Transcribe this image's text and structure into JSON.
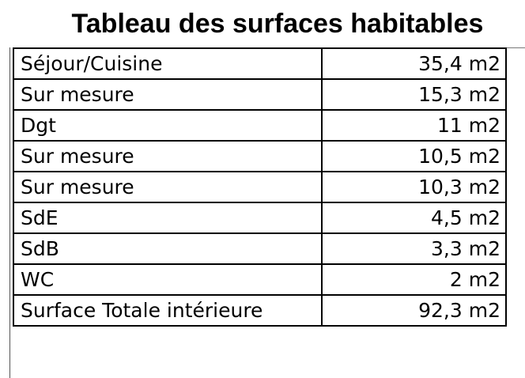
{
  "title": "Tableau des surfaces habitables",
  "rows": [
    {
      "room": "Séjour/Cuisine",
      "area": "35,4 m2"
    },
    {
      "room": "Sur mesure",
      "area": "15,3 m2"
    },
    {
      "room": "Dgt",
      "area": "11 m2"
    },
    {
      "room": "Sur mesure",
      "area": "10,5 m2"
    },
    {
      "room": "Sur mesure",
      "area": "10,3 m2"
    },
    {
      "room": "SdE",
      "area": "4,5 m2"
    },
    {
      "room": "SdB",
      "area": "3,3 m2"
    },
    {
      "room": "WC",
      "area": "2 m2"
    },
    {
      "room": "Surface Totale intérieure",
      "area": "92,3 m2"
    }
  ]
}
